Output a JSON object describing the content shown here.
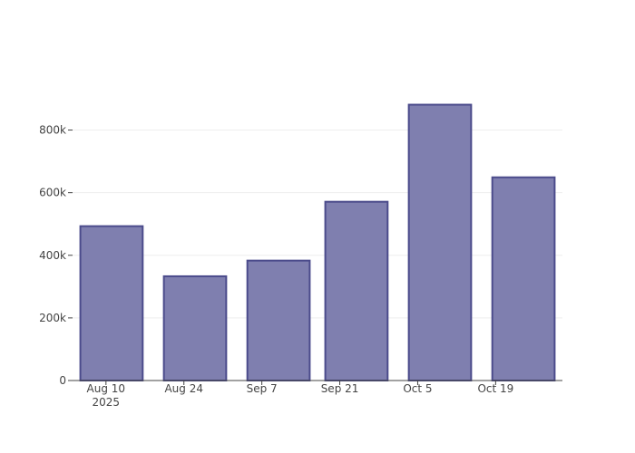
{
  "chart_data": {
    "type": "bar",
    "x": [
      "2025-08-11",
      "2025-08-26",
      "2025-09-10",
      "2025-09-24",
      "2025-10-09",
      "2025-10-24"
    ],
    "values": [
      493000,
      333000,
      383000,
      571000,
      881000,
      649000
    ],
    "color": "#7f7faf",
    "line_color": "#4b4b8b",
    "xlim": [
      "2025-08-04",
      "2025-10-31"
    ],
    "xticks": [
      {
        "value": "2025-08-10",
        "label": "Aug 10\n2025"
      },
      {
        "value": "2025-08-24",
        "label": "Aug 24"
      },
      {
        "value": "2025-09-07",
        "label": "Sep 7"
      },
      {
        "value": "2025-09-21",
        "label": "Sep 21"
      },
      {
        "value": "2025-10-05",
        "label": "Oct 5"
      },
      {
        "value": "2025-10-19",
        "label": "Oct 19"
      }
    ],
    "ylim": [
      0,
      926000
    ],
    "yticks": [
      0,
      {
        "value": 200000,
        "label": "200k"
      },
      {
        "value": 400000,
        "label": "400k"
      },
      {
        "value": 600000,
        "label": "600k"
      },
      {
        "value": 800000,
        "label": "800k"
      }
    ],
    "grid": true
  }
}
